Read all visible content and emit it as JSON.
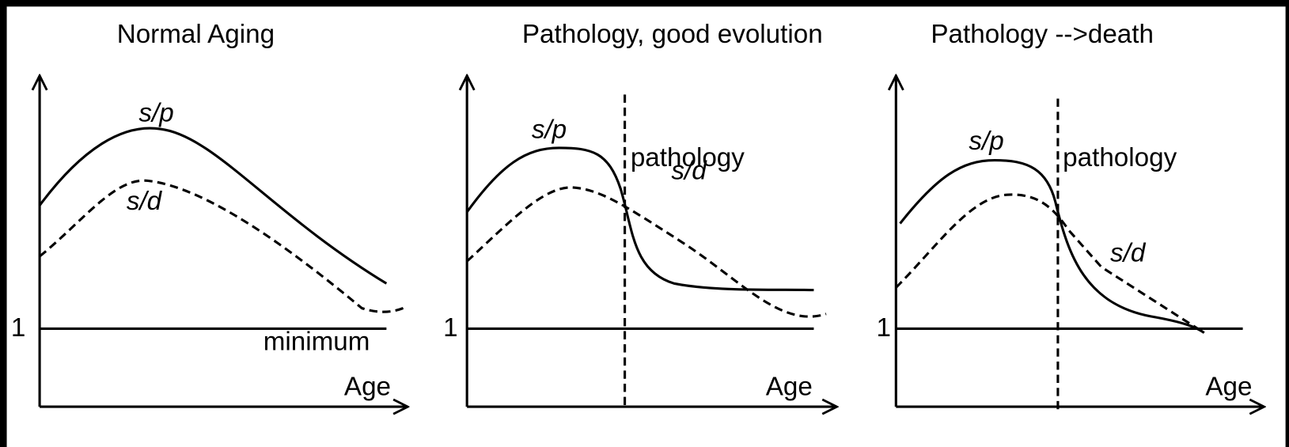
{
  "panels": [
    {
      "title": "Normal Aging",
      "labels": {
        "sp": "s/p",
        "sd": "s/d",
        "one": "1",
        "minimum": "minimum",
        "age": "Age"
      }
    },
    {
      "title": "Pathology, good evolution",
      "labels": {
        "sp": "s/p",
        "sd": "s/d",
        "one": "1",
        "pathology": "pathology",
        "age": "Age"
      }
    },
    {
      "title": "Pathology -->death",
      "labels": {
        "sp": "s/p",
        "sd": "s/d",
        "one": "1",
        "pathology": "pathology",
        "age": "Age"
      }
    }
  ]
}
